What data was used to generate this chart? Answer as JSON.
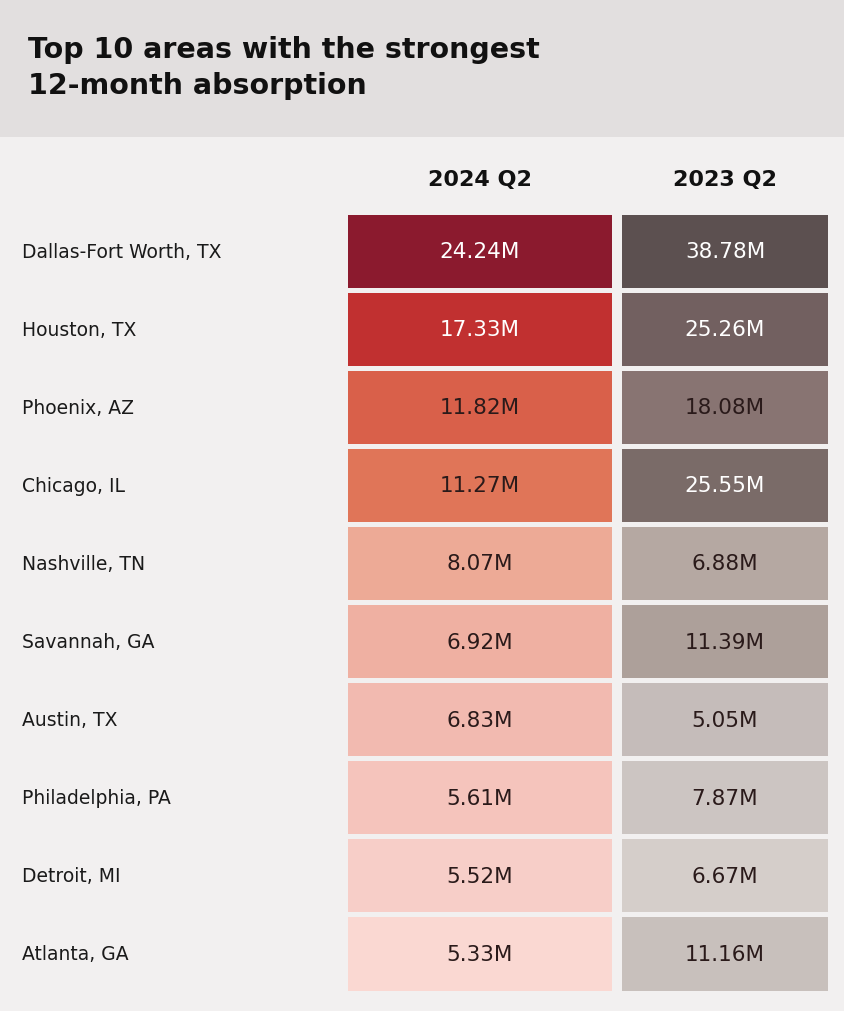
{
  "title": "Top 10 areas with the strongest\n12-month absorption",
  "col1_header": "2024 Q2",
  "col2_header": "2023 Q2",
  "areas": [
    "Dallas-Fort Worth, TX",
    "Houston, TX",
    "Phoenix, AZ",
    "Chicago, IL",
    "Nashville, TN",
    "Savannah, GA",
    "Austin, TX",
    "Philadelphia, PA",
    "Detroit, MI",
    "Atlanta, GA"
  ],
  "values_2024": [
    "24.24M",
    "17.33M",
    "11.82M",
    "11.27M",
    "8.07M",
    "6.92M",
    "6.83M",
    "5.61M",
    "5.52M",
    "5.33M"
  ],
  "values_2023": [
    "38.78M",
    "25.26M",
    "18.08M",
    "25.55M",
    "6.88M",
    "11.39M",
    "5.05M",
    "7.87M",
    "6.67M",
    "11.16M"
  ],
  "colors_2024": [
    "#8B1A2E",
    "#C13030",
    "#D9604A",
    "#E07558",
    "#EDAA96",
    "#EFB0A2",
    "#F2BAB0",
    "#F5C4BC",
    "#F7CEC8",
    "#FAD8D2"
  ],
  "colors_2023": [
    "#5C5050",
    "#726060",
    "#887472",
    "#7A6B68",
    "#B5A8A2",
    "#ADA09A",
    "#C5BCBA",
    "#CCC5C2",
    "#D5CECA",
    "#C8C0BC"
  ],
  "text_colors_2024": [
    "#FFFFFF",
    "#FFFFFF",
    "#2a1a1a",
    "#2a1a1a",
    "#2a1a1a",
    "#2a1a1a",
    "#2a1a1a",
    "#2a1a1a",
    "#2a1a1a",
    "#2a1a1a"
  ],
  "text_colors_2023": [
    "#FFFFFF",
    "#FFFFFF",
    "#2a1a1a",
    "#FFFFFF",
    "#2a1a1a",
    "#2a1a1a",
    "#2a1a1a",
    "#2a1a1a",
    "#2a1a1a",
    "#2a1a1a"
  ],
  "bg_color": "#f2f0f0",
  "title_bg_color": "#e2dfdf",
  "fig_width": 8.44,
  "fig_height": 10.12,
  "dpi": 100
}
